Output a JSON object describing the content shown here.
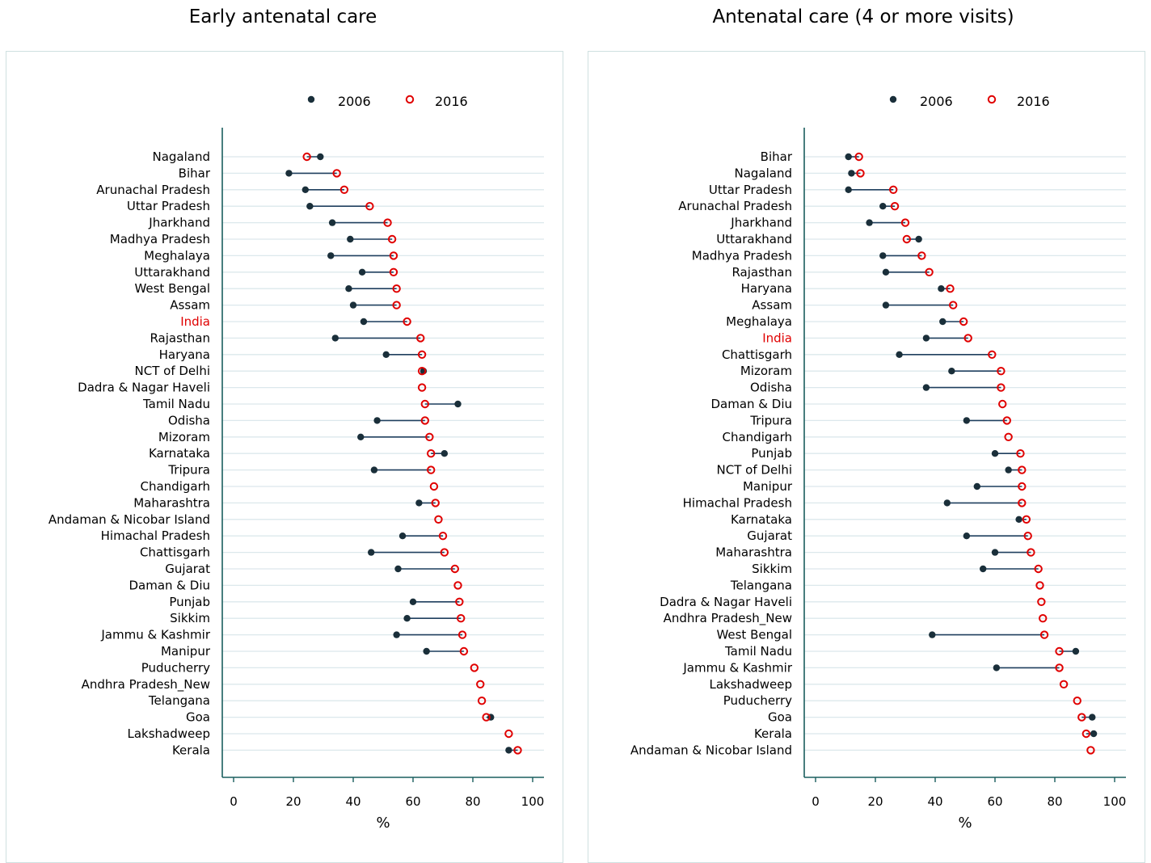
{
  "colors": {
    "series_2006": "#1a2f3a",
    "series_2016": "#e00000",
    "connector": "#1f3f5e",
    "axis": "#1a5e5e",
    "gridline": "#dce8ec",
    "highlight": "#e00000"
  },
  "chart_data": [
    {
      "type": "dumbbell",
      "title": "Early antenatal care",
      "xlabel": "%",
      "xlim": [
        0,
        100
      ],
      "xticks": [
        0,
        20,
        40,
        60,
        80,
        100
      ],
      "legend": [
        "2006",
        "2016"
      ],
      "legend_position": "top",
      "grid": true,
      "highlight": "India",
      "categories": [
        "Nagaland",
        "Bihar",
        "Arunachal Pradesh",
        "Uttar Pradesh",
        "Jharkhand",
        "Madhya Pradesh",
        "Meghalaya",
        "Uttarakhand",
        "West Bengal",
        "Assam",
        "India",
        "Rajasthan",
        "Haryana",
        "NCT of Delhi",
        "Dadra & Nagar Haveli",
        "Tamil Nadu",
        "Odisha",
        "Mizoram",
        "Karnataka",
        "Tripura",
        "Chandigarh",
        "Maharashtra",
        "Andaman & Nicobar Island",
        "Himachal Pradesh",
        "Chattisgarh",
        "Gujarat",
        "Daman & Diu",
        "Punjab",
        "Sikkim",
        "Jammu & Kashmir",
        "Manipur",
        "Puducherry",
        "Andhra Pradesh_New",
        "Telangana",
        "Goa",
        "Lakshadweep",
        "Kerala"
      ],
      "series": [
        {
          "name": "2006",
          "values": [
            29,
            18.5,
            24,
            25.5,
            33,
            39,
            32.5,
            43,
            38.5,
            40,
            43.5,
            34,
            51,
            63.5,
            null,
            75,
            48,
            42.5,
            70.5,
            47,
            null,
            62,
            null,
            56.5,
            46,
            55,
            null,
            60,
            58,
            54.5,
            64.5,
            null,
            null,
            null,
            86,
            null,
            92
          ]
        },
        {
          "name": "2016",
          "values": [
            24.5,
            34.5,
            37,
            45.5,
            51.5,
            53,
            53.5,
            53.5,
            54.5,
            54.5,
            58,
            62.5,
            63,
            63,
            63,
            64,
            64,
            65.5,
            66,
            66,
            67,
            67.5,
            68.5,
            70,
            70.5,
            74,
            75,
            75.5,
            76,
            76.5,
            77,
            80.5,
            82.5,
            83,
            84.5,
            92,
            95
          ]
        }
      ]
    },
    {
      "type": "dumbbell",
      "title": "Antenatal care (4 or more visits)",
      "xlabel": "%",
      "xlim": [
        0,
        100
      ],
      "xticks": [
        0,
        20,
        40,
        60,
        80,
        100
      ],
      "legend": [
        "2006",
        "2016"
      ],
      "legend_position": "top",
      "grid": true,
      "highlight": "India",
      "categories": [
        "Bihar",
        "Nagaland",
        "Uttar Pradesh",
        "Arunachal Pradesh",
        "Jharkhand",
        "Uttarakhand",
        "Madhya Pradesh",
        "Rajasthan",
        "Haryana",
        "Assam",
        "Meghalaya",
        "India",
        "Chattisgarh",
        "Mizoram",
        "Odisha",
        "Daman & Diu",
        "Tripura",
        "Chandigarh",
        "Punjab",
        "NCT of Delhi",
        "Manipur",
        "Himachal Pradesh",
        "Karnataka",
        "Gujarat",
        "Maharashtra",
        "Sikkim",
        "Telangana",
        "Dadra & Nagar Haveli",
        "Andhra Pradesh_New",
        "West Bengal",
        "Tamil Nadu",
        "Jammu & Kashmir",
        "Lakshadweep",
        "Puducherry",
        "Goa",
        "Kerala",
        "Andaman & Nicobar Island"
      ],
      "series": [
        {
          "name": "2006",
          "values": [
            11,
            12,
            11,
            22.5,
            18,
            34.5,
            22.5,
            23.5,
            42,
            23.5,
            42.5,
            37,
            28,
            45.5,
            37,
            null,
            50.5,
            null,
            60,
            64.5,
            54,
            44,
            68,
            50.5,
            60,
            56,
            null,
            null,
            null,
            39,
            87,
            60.5,
            null,
            null,
            92.5,
            93,
            null
          ]
        },
        {
          "name": "2016",
          "values": [
            14.5,
            15,
            26,
            26.5,
            30,
            30.5,
            35.5,
            38,
            45,
            46,
            49.5,
            51,
            59,
            62,
            62,
            62.5,
            64,
            64.5,
            68.5,
            69,
            69,
            69,
            70.5,
            71,
            72,
            74.5,
            75,
            75.5,
            76,
            76.5,
            81.5,
            81.5,
            83,
            87.5,
            89,
            90.5,
            92
          ]
        }
      ]
    }
  ]
}
